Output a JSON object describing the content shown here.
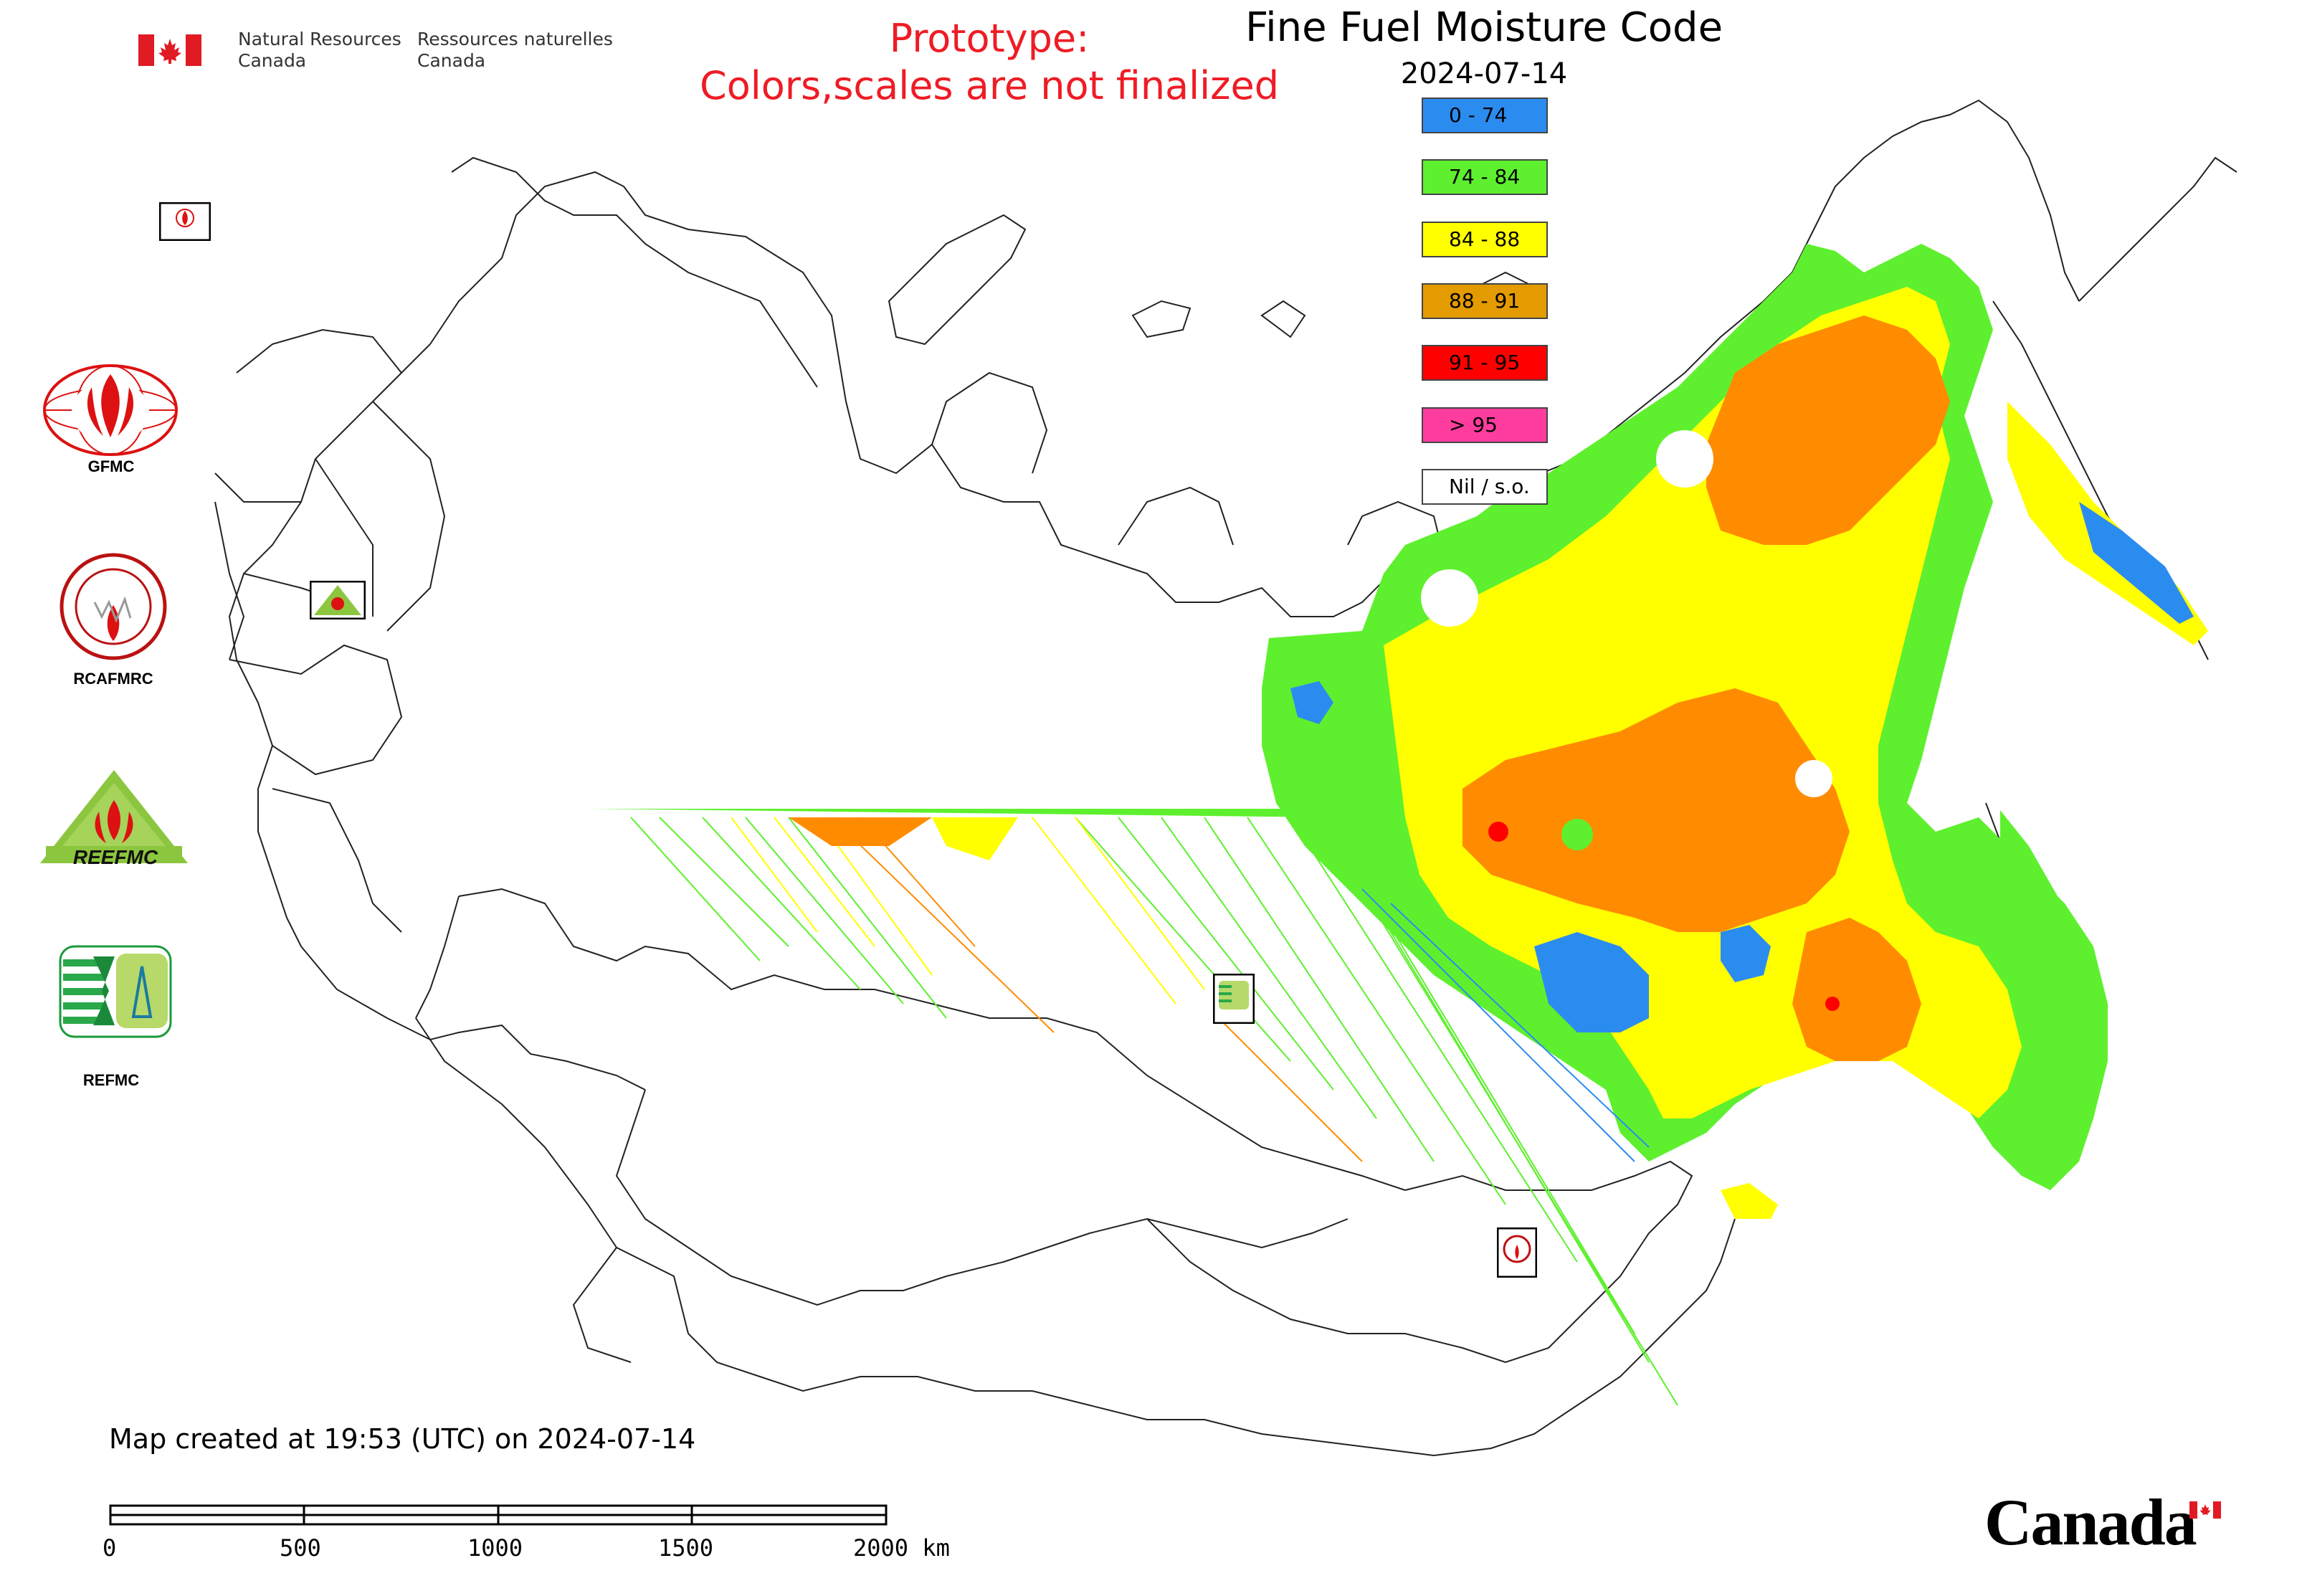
{
  "title": "Fine Fuel Moisture Code",
  "date": "2024-07-14",
  "prototype_line1": "Prototype:",
  "prototype_line2": "Colors,scales are not finalized",
  "nrcan": {
    "english_line1": "Natural Resources",
    "english_line2": "Canada",
    "french_line1": "Ressources naturelles",
    "french_line2": "Canada"
  },
  "legend": [
    {
      "label": "0 - 74",
      "color": "#2b8cf0"
    },
    {
      "label": "74 - 84",
      "color": "#5ef02e"
    },
    {
      "label": "84 - 88",
      "color": "#ffff00"
    },
    {
      "label": "88 - 91",
      "color": "#e39b00"
    },
    {
      "label": "91 - 95",
      "color": "#ff0000"
    },
    {
      "label": "> 95",
      "color": "#ff3d9e"
    },
    {
      "label": "Nil / s.o.",
      "color": "#ffffff"
    }
  ],
  "logos": {
    "gfmc": "GFMC",
    "rcafmrc": "RCAFMRC",
    "reefmc_text": "REEFMC",
    "refmc": "REFMC"
  },
  "footer": "Map created at 19:53 (UTC) on 2024-07-14",
  "scale_bar": {
    "labels": [
      "0",
      "500",
      "1000",
      "1500",
      "2000 km"
    ]
  },
  "wordmark": "Canada"
}
